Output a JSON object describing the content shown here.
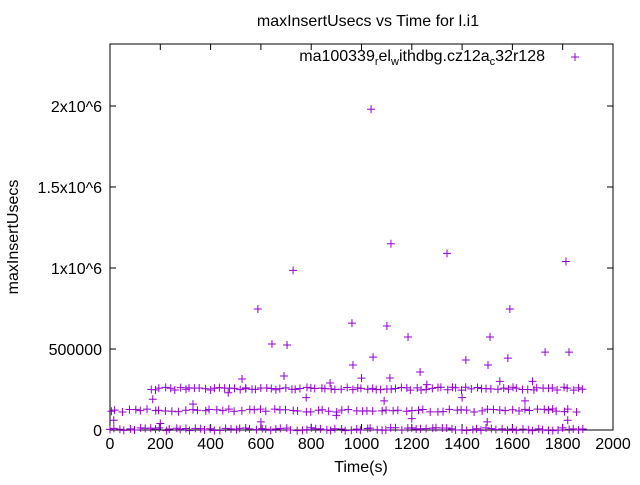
{
  "chart_data": {
    "type": "scatter",
    "title": "maxInsertUsecs vs Time for l.i1",
    "xlabel": "Time(s)",
    "ylabel": "maxInsertUsecs",
    "xlim": [
      0,
      2000
    ],
    "ylim": [
      0,
      2400000
    ],
    "xticks": [
      0,
      200,
      400,
      600,
      800,
      1000,
      1200,
      1400,
      1600,
      1800,
      2000
    ],
    "xtick_labels": [
      "0",
      "200",
      "400",
      "600",
      "800",
      "1000",
      "1200",
      "1400",
      "1600",
      "1800",
      "2000"
    ],
    "yticks": [
      0,
      500000,
      1000000,
      1500000,
      2000000
    ],
    "ytick_labels": [
      "0",
      "500000",
      "1x10^6",
      "1.5x10^6",
      "2x10^6"
    ],
    "grid": false,
    "legend_position": "top-right",
    "series": [
      {
        "name": "ma100339_rel_withdbg.cz12a_c32r128",
        "legend_parts": [
          "ma100339",
          "r",
          "el",
          "w",
          "ithdbg.cz12a",
          "c",
          "32r128"
        ],
        "color": "#9400d3",
        "bands": [
          {
            "x_start": 0,
            "x_end": 1880,
            "x_step": 20,
            "y": 5000
          },
          {
            "x_start": 0,
            "x_end": 1860,
            "x_step": 25,
            "y": 120000
          },
          {
            "x_start": 160,
            "x_end": 1880,
            "x_step": 20,
            "y": 255000
          }
        ],
        "points": [
          [
            1038,
            1980000
          ],
          [
            1117,
            1150000
          ],
          [
            1340,
            1090000
          ],
          [
            728,
            985000
          ],
          [
            1813,
            1040000
          ],
          [
            588,
            747000
          ],
          [
            1590,
            747000
          ],
          [
            962,
            660000
          ],
          [
            1101,
            642000
          ],
          [
            644,
            531000
          ],
          [
            704,
            525000
          ],
          [
            1185,
            574000
          ],
          [
            1511,
            574000
          ],
          [
            1730,
            481000
          ],
          [
            1825,
            481000
          ],
          [
            1046,
            450000
          ],
          [
            1415,
            432000
          ],
          [
            966,
            401000
          ],
          [
            1582,
            444000
          ],
          [
            1233,
            358000
          ],
          [
            692,
            333000
          ],
          [
            525,
            315000
          ],
          [
            1113,
            321000
          ],
          [
            875,
            290000
          ],
          [
            1503,
            401000
          ],
          [
            170,
            190000
          ],
          [
            470,
            230000
          ],
          [
            540,
            260000
          ],
          [
            1000,
            320000
          ],
          [
            1260,
            280000
          ],
          [
            1680,
            300000
          ],
          [
            1550,
            300000
          ],
          [
            330,
            160000
          ],
          [
            780,
            200000
          ],
          [
            1090,
            180000
          ],
          [
            1400,
            200000
          ],
          [
            1650,
            180000
          ],
          [
            15,
            60000
          ],
          [
            200,
            40000
          ],
          [
            600,
            50000
          ],
          [
            1200,
            70000
          ],
          [
            1500,
            50000
          ],
          [
            1820,
            60000
          ],
          [
            900,
            90000
          ],
          [
            1760,
            130000
          ]
        ]
      }
    ]
  }
}
